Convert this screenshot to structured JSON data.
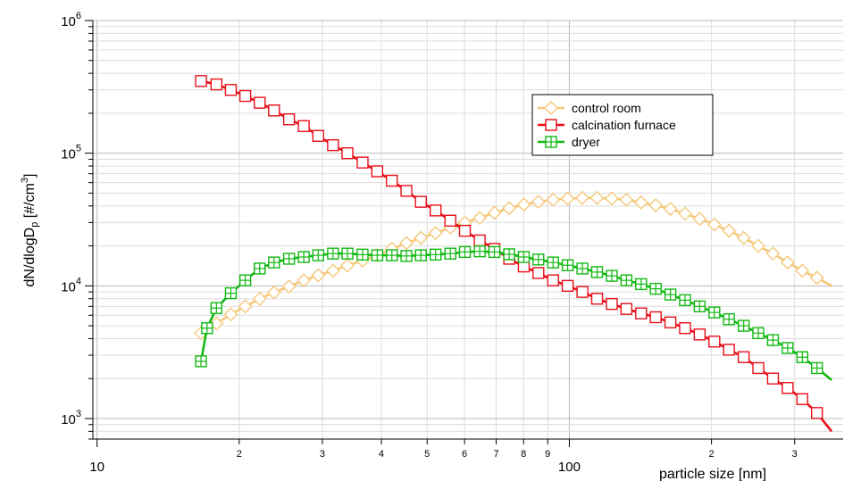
{
  "chart_data": {
    "type": "line",
    "xlabel": "particle size [nm]",
    "ylabel": {
      "base": "dN/dlogD",
      "subscript": "p",
      "units_pre": " [#/cm",
      "superscript": "3",
      "units_post": "]"
    },
    "x_scale": "log",
    "y_scale": "log",
    "xlim": [
      9.8,
      380
    ],
    "ylim": [
      700,
      1000000
    ],
    "grid": true,
    "legend_position": "top-right",
    "x_major_ticks": [
      {
        "value": 10,
        "label": "10"
      },
      {
        "value": 100,
        "label": "100"
      }
    ],
    "x_minor_ticks": [
      {
        "value": 20,
        "label": "2"
      },
      {
        "value": 30,
        "label": "3"
      },
      {
        "value": 40,
        "label": "4"
      },
      {
        "value": 50,
        "label": "5"
      },
      {
        "value": 60,
        "label": "6"
      },
      {
        "value": 70,
        "label": "7"
      },
      {
        "value": 80,
        "label": "8"
      },
      {
        "value": 90,
        "label": "9"
      },
      {
        "value": 200,
        "label": "2"
      },
      {
        "value": 300,
        "label": "3"
      }
    ],
    "y_major_ticks": [
      {
        "value": 1000,
        "exponent": "3"
      },
      {
        "value": 10000,
        "exponent": "4"
      },
      {
        "value": 100000,
        "exponent": "5"
      },
      {
        "value": 1000000,
        "exponent": "6"
      }
    ],
    "y_tick_base": "10",
    "series": [
      {
        "name": "control room",
        "color": "#f5c87a",
        "marker": "diamond",
        "x": [
          16.6,
          17.9,
          19.2,
          20.6,
          22.1,
          23.7,
          25.5,
          27.4,
          29.4,
          31.6,
          33.9,
          36.5,
          39.2,
          42.1,
          45.2,
          48.5,
          52.1,
          56.0,
          60.1,
          64.6,
          69.4,
          74.6,
          80.1,
          86.0,
          92.4,
          99.2,
          106.6,
          114.5,
          123.0,
          132.1,
          141.9,
          152.4,
          163.7,
          175.8,
          188.8,
          202.8,
          217.8,
          234.0,
          251.3,
          269.9,
          289.9,
          311.4,
          334.5,
          359.3
        ],
        "y": [
          4400,
          5200,
          6100,
          7000,
          8000,
          8900,
          9900,
          11000,
          12000,
          13000,
          14200,
          15500,
          17000,
          19000,
          21000,
          23000,
          25000,
          27500,
          30000,
          32500,
          35500,
          38500,
          41000,
          43000,
          44500,
          45500,
          46000,
          46000,
          45500,
          44500,
          42500,
          40500,
          38000,
          35000,
          32000,
          29000,
          26000,
          23000,
          20000,
          17500,
          15000,
          13000,
          11500,
          10000
        ]
      },
      {
        "name": "calcination furnace",
        "color": "#e8101a",
        "marker": "square",
        "x": [
          16.6,
          17.9,
          19.2,
          20.6,
          22.1,
          23.7,
          25.5,
          27.4,
          29.4,
          31.6,
          33.9,
          36.5,
          39.2,
          42.1,
          45.2,
          48.5,
          52.1,
          56.0,
          60.1,
          64.6,
          69.4,
          74.6,
          80.1,
          86.0,
          92.4,
          99.2,
          106.6,
          114.5,
          123.0,
          132.1,
          141.9,
          152.4,
          163.7,
          175.8,
          188.8,
          202.8,
          217.8,
          234.0,
          251.3,
          269.9,
          289.9,
          311.4,
          334.5,
          359.3
        ],
        "y": [
          350000,
          330000,
          300000,
          270000,
          240000,
          210000,
          180000,
          160000,
          135000,
          115000,
          100000,
          85000,
          73000,
          62000,
          52000,
          43000,
          37000,
          31000,
          26000,
          22000,
          19000,
          16000,
          14000,
          12500,
          11000,
          10000,
          9000,
          8000,
          7300,
          6700,
          6200,
          5800,
          5300,
          4800,
          4300,
          3800,
          3300,
          2900,
          2400,
          2000,
          1700,
          1400,
          1100,
          800
        ]
      },
      {
        "name": "dryer",
        "color": "#12b812",
        "marker": "square-plus",
        "x": [
          16.6,
          17.1,
          17.9,
          19.2,
          20.6,
          22.1,
          23.7,
          25.5,
          27.4,
          29.4,
          31.6,
          33.9,
          36.5,
          39.2,
          42.1,
          45.2,
          48.5,
          52.1,
          56.0,
          60.1,
          64.6,
          69.4,
          74.6,
          80.1,
          86.0,
          92.4,
          99.2,
          106.6,
          114.5,
          123.0,
          132.1,
          141.9,
          152.4,
          163.7,
          175.8,
          188.8,
          202.8,
          217.8,
          234.0,
          251.3,
          269.9,
          289.9,
          311.4,
          334.5,
          359.3
        ],
        "y": [
          2700,
          4800,
          6800,
          8800,
          11000,
          13500,
          15000,
          16000,
          16500,
          17000,
          17500,
          17500,
          17200,
          17000,
          17000,
          16800,
          17000,
          17200,
          17500,
          18000,
          18200,
          18000,
          17300,
          16500,
          15800,
          15000,
          14300,
          13500,
          12700,
          11900,
          11000,
          10300,
          9500,
          8600,
          7800,
          7000,
          6300,
          5600,
          5000,
          4400,
          3900,
          3400,
          2900,
          2400,
          1950
        ]
      }
    ]
  }
}
